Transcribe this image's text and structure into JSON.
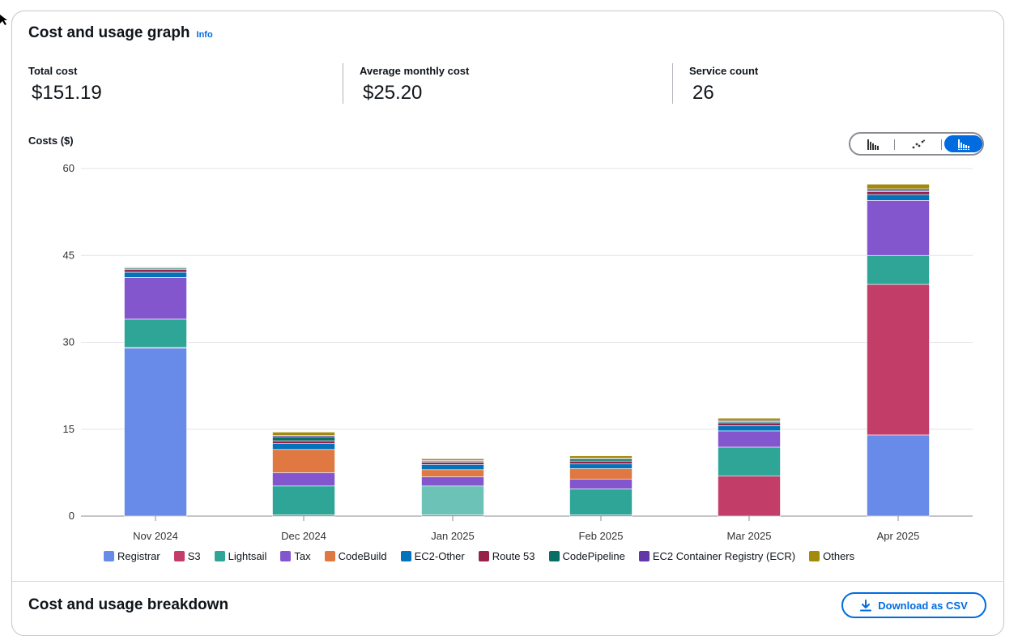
{
  "graph": {
    "title": "Cost and usage graph",
    "info_label": "Info"
  },
  "kpis": [
    {
      "label": "Total cost",
      "value": "$151.19"
    },
    {
      "label": "Average monthly cost",
      "value": "$25.20"
    },
    {
      "label": "Service count",
      "value": "26"
    }
  ],
  "chart_toggle": {
    "options": [
      "bar-chart-icon",
      "line-chart-icon",
      "stacked-bar-chart-icon"
    ],
    "active_index": 2
  },
  "breakdown": {
    "title": "Cost and usage breakdown",
    "download_label": "Download as CSV"
  },
  "chart_data": {
    "type": "bar",
    "stacked": true,
    "ylabel": "Costs ($)",
    "ylim": [
      0,
      60
    ],
    "yticks": [
      0,
      15,
      30,
      45,
      60
    ],
    "grid": true,
    "legend_position": "bottom",
    "categories": [
      "Nov 2024",
      "Dec 2024",
      "Jan 2025",
      "Feb 2025",
      "Mar 2025",
      "Apr 2025"
    ],
    "series": [
      {
        "name": "Registrar",
        "color": "#688ae8",
        "values": [
          29.0,
          0.0,
          0.0,
          0.0,
          0.0,
          14.0
        ]
      },
      {
        "name": "S3",
        "color": "#c33d69",
        "values": [
          0.1,
          0.2,
          0.2,
          0.2,
          6.9,
          26.0
        ]
      },
      {
        "name": "Lightsail",
        "color": "#2ea597",
        "values": [
          4.9,
          5.0,
          5.0,
          4.5,
          5.0,
          5.0
        ]
      },
      {
        "name": "Tax",
        "color": "#8456ce",
        "values": [
          7.2,
          2.3,
          1.6,
          1.7,
          2.8,
          9.5
        ]
      },
      {
        "name": "CodeBuild",
        "color": "#e07941",
        "values": [
          0.0,
          4.0,
          1.2,
          1.8,
          0.0,
          0.0
        ]
      },
      {
        "name": "EC2-Other",
        "color": "#0273bb",
        "values": [
          0.9,
          1.0,
          0.9,
          0.8,
          0.9,
          1.0
        ]
      },
      {
        "name": "Route 53",
        "color": "#962249",
        "values": [
          0.5,
          0.5,
          0.4,
          0.5,
          0.5,
          0.5
        ]
      },
      {
        "name": "CodePipeline",
        "color": "#096f64",
        "values": [
          0.2,
          0.7,
          0.2,
          0.4,
          0.2,
          0.2
        ]
      },
      {
        "name": "EC2 Container Registry (ECR)",
        "color": "#6237a7",
        "values": [
          0.1,
          0.2,
          0.1,
          0.1,
          0.2,
          0.3
        ]
      },
      {
        "name": "Others",
        "color": "#a28a0a",
        "values": [
          0.1,
          0.6,
          0.3,
          0.4,
          0.4,
          0.8
        ]
      }
    ]
  }
}
